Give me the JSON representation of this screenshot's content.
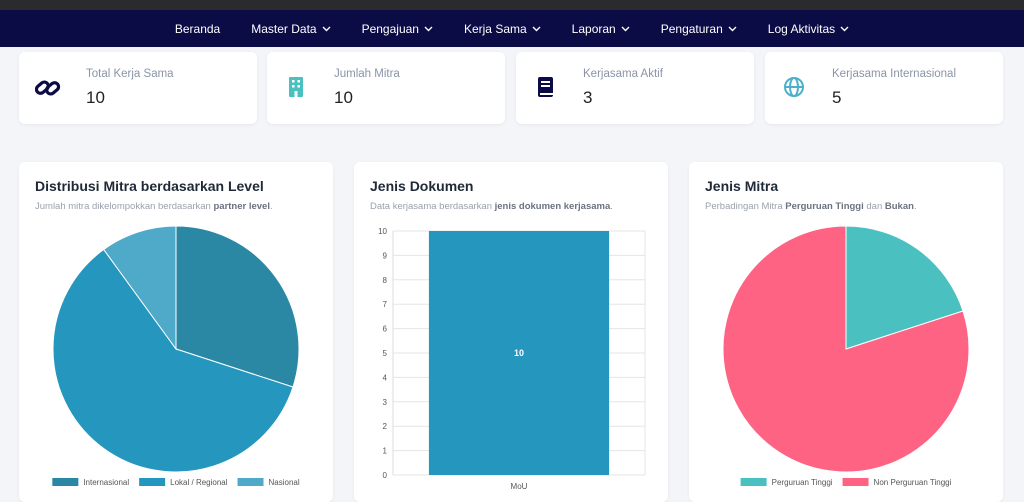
{
  "nav": {
    "items": [
      {
        "label": "Beranda",
        "dropdown": false
      },
      {
        "label": "Master Data",
        "dropdown": true
      },
      {
        "label": "Pengajuan",
        "dropdown": true
      },
      {
        "label": "Kerja Sama",
        "dropdown": true
      },
      {
        "label": "Laporan",
        "dropdown": true
      },
      {
        "label": "Pengaturan",
        "dropdown": true
      },
      {
        "label": "Log Aktivitas",
        "dropdown": true
      }
    ]
  },
  "stats": [
    {
      "label": "Total Kerja Sama",
      "value": 10
    },
    {
      "label": "Jumlah Mitra",
      "value": 10
    },
    {
      "label": "Kerjasama Aktif",
      "value": 3
    },
    {
      "label": "Kerjasama Internasional",
      "value": 5
    }
  ],
  "chart_data": [
    {
      "type": "pie",
      "title": "Distribusi Mitra berdasarkan Level",
      "subtitle": [
        "Jumlah mitra dikelompokkan berdasarkan ",
        "partner level",
        "."
      ],
      "categories": [
        "Internasional",
        "Lokal / Regional",
        "Nasional"
      ],
      "values": [
        3,
        6,
        1
      ],
      "colors": [
        "#2a88a4",
        "#2596be",
        "#4fa9c9"
      ],
      "legend": "bottom"
    },
    {
      "type": "bar",
      "title": "Jenis Dokumen",
      "subtitle": [
        "Data kerjasama berdasarkan ",
        "jenis dokumen kerjasama",
        "."
      ],
      "categories": [
        "MoU"
      ],
      "values": [
        10
      ],
      "color": "#2596be",
      "ylim": [
        0,
        10
      ],
      "yticks": [
        0,
        1,
        2,
        3,
        4,
        5,
        6,
        7,
        8,
        9,
        10
      ],
      "grid": true
    },
    {
      "type": "pie",
      "title": "Jenis Mitra",
      "subtitle": [
        "Perbadingan Mitra ",
        "Perguruan Tinggi",
        " dan ",
        "Bukan",
        "."
      ],
      "categories": [
        "Perguruan Tinggi",
        "Non Perguruan Tinggi"
      ],
      "values": [
        2,
        8
      ],
      "colors": [
        "#4bc0c0",
        "#ff6384"
      ],
      "legend": "bottom"
    }
  ]
}
